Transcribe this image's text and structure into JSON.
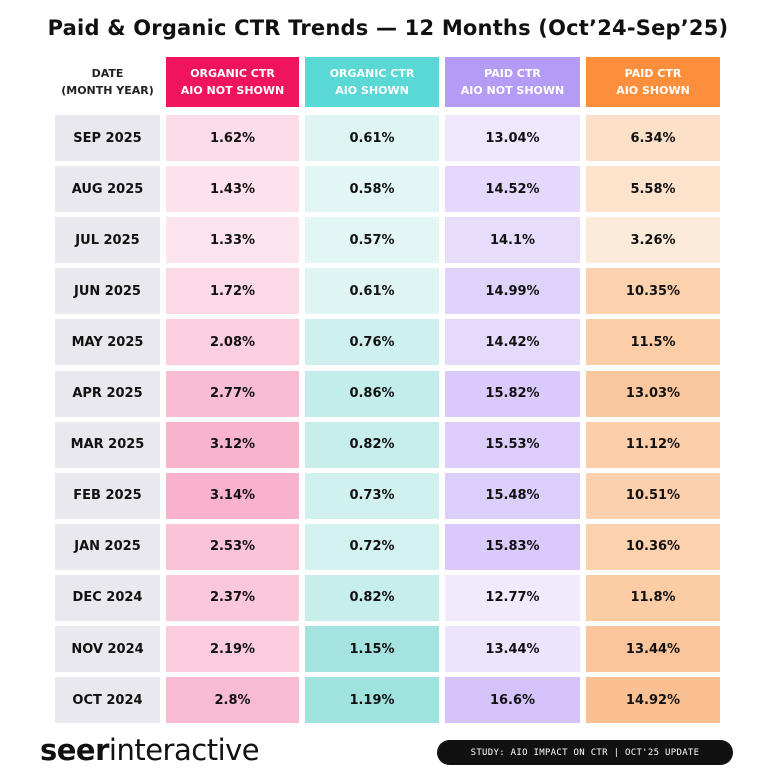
{
  "title": "Paid & Organic CTR Trends — 12 Months (Oct’24-Sep’25)",
  "table": {
    "header": [
      [
        "DATE",
        "(MONTH YEAR)"
      ],
      [
        "ORGANIC CTR",
        "AIO NOT SHOWN"
      ],
      [
        "ORGANIC CTR",
        "AIO SHOWN"
      ],
      [
        "PAID CTR",
        "AIO NOT SHOWN"
      ],
      [
        "PAID CTR",
        "AIO SHOWN"
      ]
    ],
    "rows": [
      [
        "SEP 2025",
        "1.62%",
        "0.61%",
        "13.04%",
        "6.34%"
      ],
      [
        "AUG 2025",
        "1.43%",
        "0.58%",
        "14.52%",
        "5.58%"
      ],
      [
        "JUL 2025",
        "1.33%",
        "0.57%",
        "14.1%",
        "3.26%"
      ],
      [
        "JUN 2025",
        "1.72%",
        "0.61%",
        "14.99%",
        "10.35%"
      ],
      [
        "MAY 2025",
        "2.08%",
        "0.76%",
        "14.42%",
        "11.5%"
      ],
      [
        "APR 2025",
        "2.77%",
        "0.86%",
        "15.82%",
        "13.03%"
      ],
      [
        "MAR 2025",
        "3.12%",
        "0.82%",
        "15.53%",
        "11.12%"
      ],
      [
        "FEB 2025",
        "3.14%",
        "0.73%",
        "15.48%",
        "10.51%"
      ],
      [
        "JAN 2025",
        "2.53%",
        "0.72%",
        "15.83%",
        "10.36%"
      ],
      [
        "DEC 2024",
        "2.37%",
        "0.82%",
        "12.77%",
        "11.8%"
      ],
      [
        "NOV 2024",
        "2.19%",
        "1.15%",
        "13.44%",
        "13.44%"
      ],
      [
        "OCT 2024",
        "2.8%",
        "1.19%",
        "16.6%",
        "14.92%"
      ]
    ]
  },
  "footer": {
    "logo_bold": "seer",
    "logo_light": "interactive",
    "badge": "STUDY: AIO IMPACT ON CTR | OCT'25 UPDATE"
  }
}
